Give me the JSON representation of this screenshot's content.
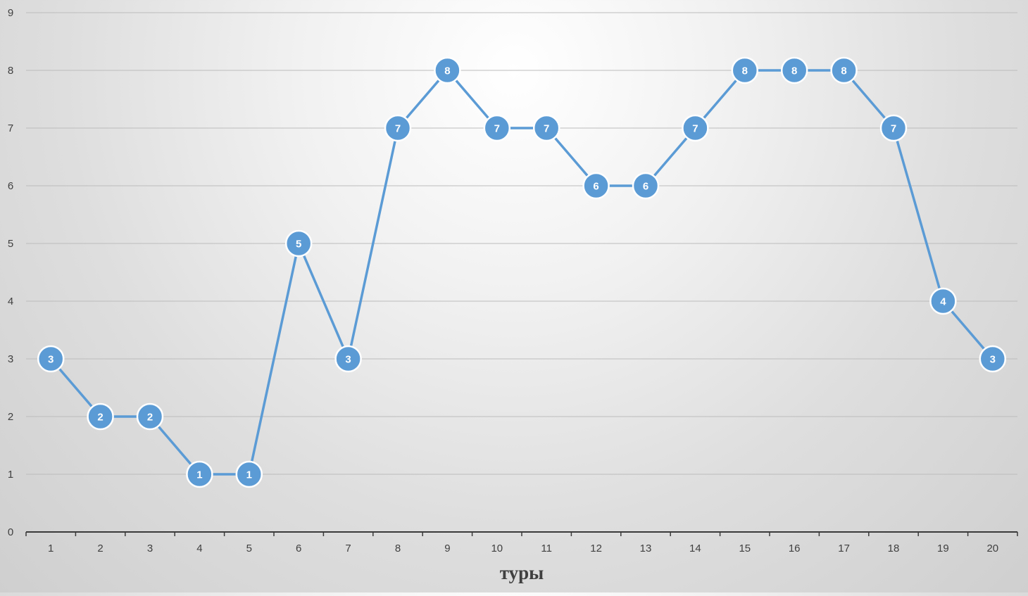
{
  "chart_data": {
    "type": "line",
    "title": "",
    "xlabel": "туры",
    "ylabel": "",
    "categories": [
      "1",
      "2",
      "3",
      "4",
      "5",
      "6",
      "7",
      "8",
      "9",
      "10",
      "11",
      "12",
      "13",
      "14",
      "15",
      "16",
      "17",
      "18",
      "19",
      "20"
    ],
    "series": [
      {
        "values": [
          3,
          2,
          2,
          1,
          1,
          5,
          3,
          7,
          8,
          7,
          7,
          6,
          6,
          7,
          8,
          8,
          8,
          7,
          4,
          3
        ],
        "color": "#5b9bd5"
      }
    ],
    "ylim": [
      0,
      9
    ],
    "yticks": [
      0,
      1,
      2,
      3,
      4,
      5,
      6,
      7,
      8,
      9
    ],
    "grid": true,
    "legend": "none",
    "data_labels": true,
    "colors": {
      "series": "#5b9bd5",
      "grid": "#bcbcbc",
      "axis": "#3a3a3a",
      "text": "#404040"
    }
  }
}
